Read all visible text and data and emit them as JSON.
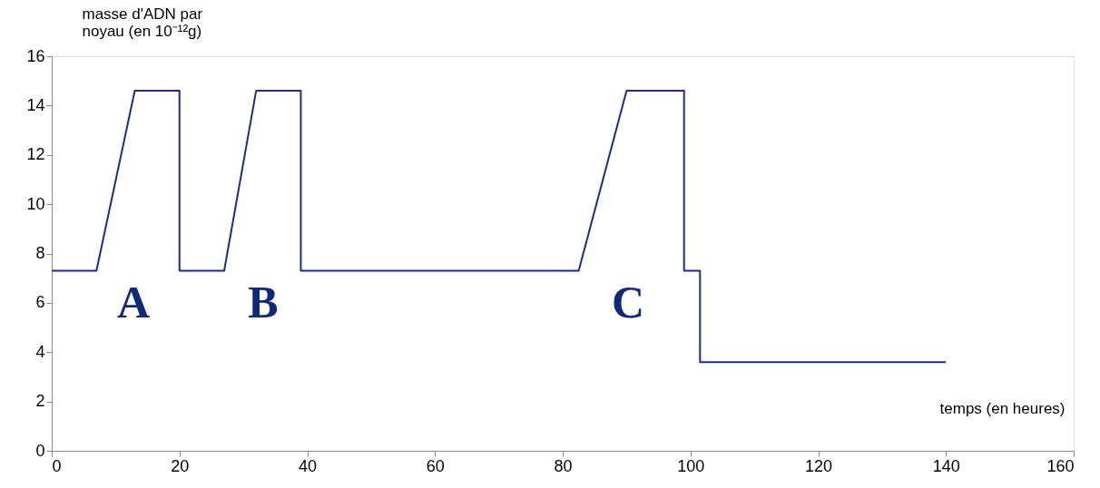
{
  "chart_data": {
    "type": "line",
    "xlabel": "temps (en heures)",
    "ylabel": "masse d'ADN par noyau (en 10⁻¹²g)",
    "x": [
      0,
      7,
      13,
      20,
      20,
      27,
      32,
      39,
      39,
      82.5,
      90,
      99,
      99,
      101.5,
      101.5,
      140
    ],
    "series": [
      {
        "color": "#1c2b8f",
        "values": [
          7.3,
          7.3,
          14.6,
          14.6,
          7.3,
          7.3,
          14.6,
          14.6,
          7.3,
          7.3,
          14.6,
          14.6,
          7.3,
          7.3,
          3.6,
          3.6
        ]
      }
    ],
    "xlim": [
      0,
      160
    ],
    "xticks": [
      0,
      20,
      40,
      60,
      80,
      100,
      120,
      140,
      160
    ],
    "ylim": [
      0,
      16
    ],
    "yticks": [
      0,
      2,
      4,
      6,
      8,
      10,
      12,
      14,
      16
    ],
    "annotations": [
      "A",
      "B",
      "C"
    ],
    "grid": false,
    "marker": "none",
    "line_style": "solid"
  }
}
